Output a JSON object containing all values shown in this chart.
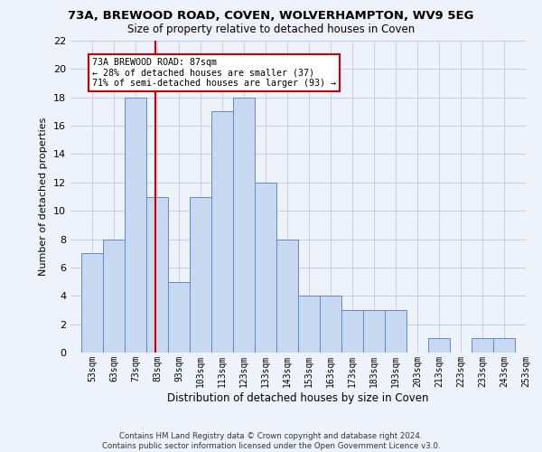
{
  "title": "73A, BREWOOD ROAD, COVEN, WOLVERHAMPTON, WV9 5EG",
  "subtitle": "Size of property relative to detached houses in Coven",
  "xlabel": "Distribution of detached houses by size in Coven",
  "ylabel": "Number of detached properties",
  "bin_labels": [
    "53sqm",
    "63sqm",
    "73sqm",
    "83sqm",
    "93sqm",
    "103sqm",
    "113sqm",
    "123sqm",
    "133sqm",
    "143sqm",
    "153sqm",
    "163sqm",
    "173sqm",
    "183sqm",
    "193sqm",
    "203sqm",
    "213sqm",
    "223sqm",
    "233sqm",
    "243sqm",
    "253sqm"
  ],
  "bin_edges": [
    53,
    63,
    73,
    83,
    93,
    103,
    113,
    123,
    133,
    143,
    153,
    163,
    173,
    183,
    193,
    203,
    213,
    223,
    233,
    243,
    253
  ],
  "bar_values": [
    7,
    8,
    18,
    11,
    5,
    11,
    17,
    18,
    12,
    8,
    4,
    4,
    3,
    3,
    3,
    0,
    1,
    0,
    1,
    1
  ],
  "bar_color": "#c8d8f0",
  "bar_edge_color": "#5b8bc8",
  "property_size": 87,
  "red_line_color": "#cc0000",
  "annotation_line1": "73A BREWOOD ROAD: 87sqm",
  "annotation_line2": "← 28% of detached houses are smaller (37)",
  "annotation_line3": "71% of semi-detached houses are larger (93) →",
  "annotation_box_color": "#ffffff",
  "annotation_box_edge_color": "#cc0000",
  "ylim": [
    0,
    22
  ],
  "yticks": [
    0,
    2,
    4,
    6,
    8,
    10,
    12,
    14,
    16,
    18,
    20,
    22
  ],
  "footer_text": "Contains HM Land Registry data © Crown copyright and database right 2024.\nContains public sector information licensed under the Open Government Licence v3.0.",
  "bg_color": "#eef2fb",
  "grid_color": "#c0c8dc"
}
